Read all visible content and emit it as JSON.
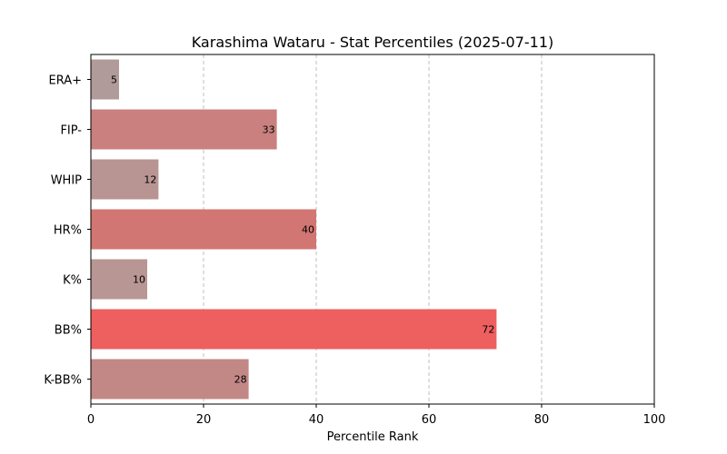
{
  "chart_data": {
    "type": "bar",
    "orientation": "horizontal",
    "title": "Karashima Wataru - Stat Percentiles (2025-07-11)",
    "xlabel": "Percentile Rank",
    "ylabel": "",
    "xlim": [
      0,
      100
    ],
    "xticks": [
      0,
      20,
      40,
      60,
      80,
      100
    ],
    "grid": "x-dashed",
    "categories": [
      "ERA+",
      "FIP-",
      "WHIP",
      "HR%",
      "K%",
      "BB%",
      "K-BB%"
    ],
    "values": [
      5,
      33,
      12,
      40,
      10,
      72,
      28
    ],
    "colors": [
      "#b09a9a",
      "#c9807e",
      "#b89593",
      "#d17672",
      "#b89693",
      "#ee5f5f",
      "#c28886"
    ]
  }
}
